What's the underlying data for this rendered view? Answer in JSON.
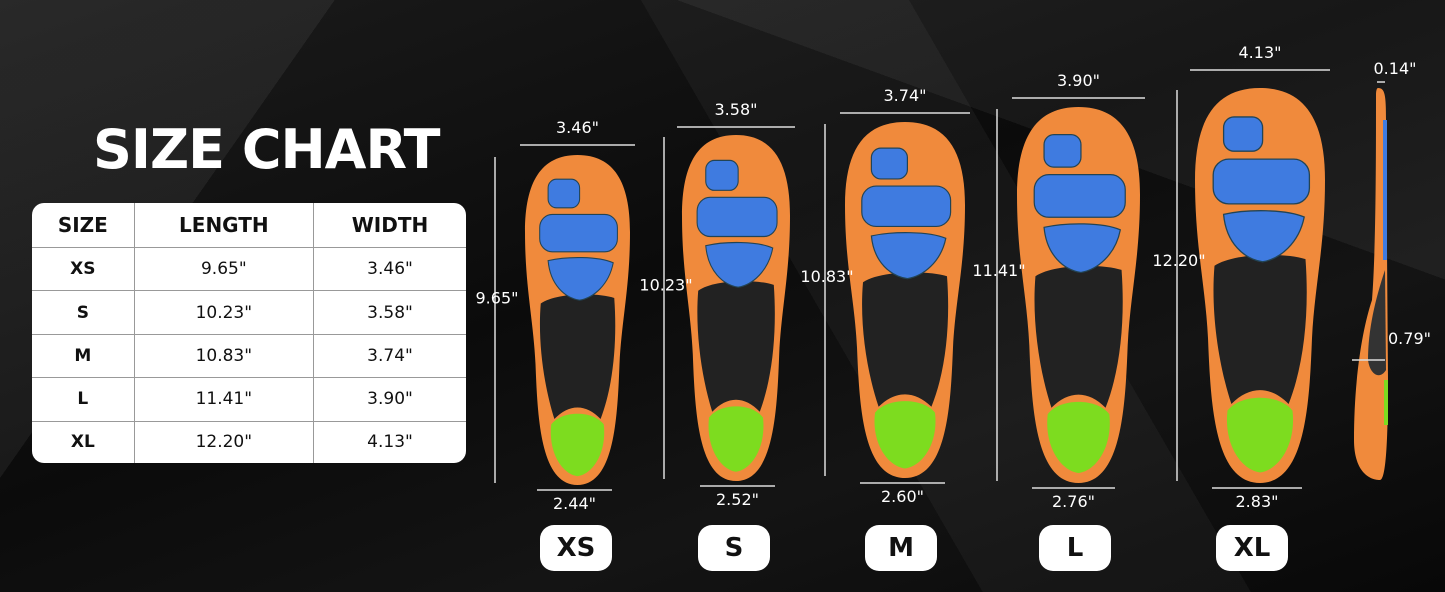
{
  "title": "SIZE CHART",
  "table": {
    "headers": [
      "SIZE",
      "LENGTH",
      "WIDTH"
    ],
    "rows": [
      [
        "XS",
        "9.65\"",
        "3.46\""
      ],
      [
        "S",
        "10.23\"",
        "3.58\""
      ],
      [
        "M",
        "10.83\"",
        "3.74\""
      ],
      [
        "L",
        "11.41\"",
        "3.90\""
      ],
      [
        "XL",
        "12.20\"",
        "4.13\""
      ]
    ]
  },
  "insoles": [
    {
      "size": "XS",
      "width": "3.46\"",
      "length": "9.65\"",
      "heel_width": "2.44\""
    },
    {
      "size": "S",
      "width": "3.58\"",
      "length": "10.23\"",
      "heel_width": "2.52\""
    },
    {
      "size": "M",
      "width": "3.74\"",
      "length": "10.83\"",
      "heel_width": "2.60\""
    },
    {
      "size": "L",
      "width": "3.90\"",
      "length": "11.41\"",
      "heel_width": "2.76\""
    },
    {
      "size": "XL",
      "width": "4.13\"",
      "length": "12.20\"",
      "heel_width": "2.83\""
    }
  ],
  "side_view": {
    "toe_thickness": "0.14\"",
    "arch_height": "0.79\""
  },
  "colors": {
    "orange": "#f08a3c",
    "blue": "#3f7be0",
    "black": "#222222",
    "green": "#7ddc1f",
    "background": "#111111"
  }
}
